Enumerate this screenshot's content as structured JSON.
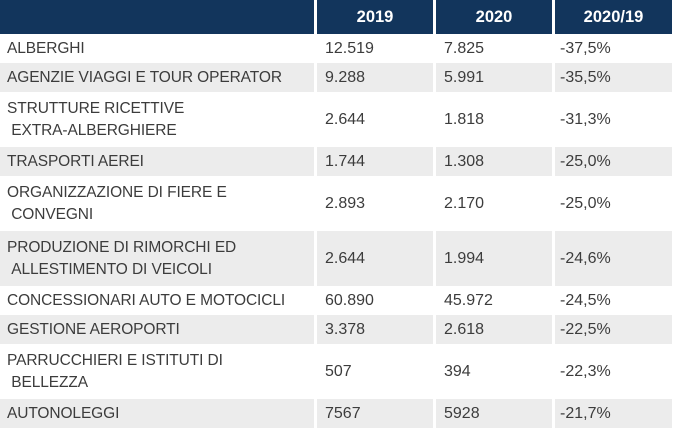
{
  "chart_data": {
    "type": "table",
    "columns": [
      "",
      "2019",
      "2020",
      "2020/19"
    ],
    "rows": [
      {
        "label": "ALBERGHI",
        "y2019": "12.519",
        "y2020": "7.825",
        "change": "-37,5%"
      },
      {
        "label": "AGENZIE VIAGGI E TOUR OPERATOR",
        "y2019": "9.288",
        "y2020": "5.991",
        "change": "-35,5%"
      },
      {
        "label": "STRUTTURE RICETTIVE\n EXTRA-ALBERGHIERE",
        "y2019": "2.644",
        "y2020": "1.818",
        "change": "-31,3%"
      },
      {
        "label": "TRASPORTI AEREI",
        "y2019": "1.744",
        "y2020": "1.308",
        "change": "-25,0%"
      },
      {
        "label": "ORGANIZZAZIONE DI FIERE E\n CONVEGNI",
        "y2019": "2.893",
        "y2020": "2.170",
        "change": "-25,0%"
      },
      {
        "label": "PRODUZIONE DI RIMORCHI ED\n ALLESTIMENTO DI VEICOLI",
        "y2019": "2.644",
        "y2020": "1.994",
        "change": "-24,6%"
      },
      {
        "label": "CONCESSIONARI AUTO E MOTOCICLI",
        "y2019": "60.890",
        "y2020": "45.972",
        "change": "-24,5%"
      },
      {
        "label": "GESTIONE AEROPORTI",
        "y2019": "3.378",
        "y2020": "2.618",
        "change": "-22,5%"
      },
      {
        "label": "PARRUCCHIERI E ISTITUTI DI\n BELLEZZA",
        "y2019": "507",
        "y2020": "394",
        "change": "-22,3%"
      },
      {
        "label": "AUTONOLEGGI",
        "y2019": "7567",
        "y2020": "5928",
        "change": "-21,7%"
      }
    ]
  },
  "colors": {
    "header_bg": "#12355C",
    "alt_row_bg": "#ECECEC",
    "header_text": "#FFFFFF",
    "body_text": "#3C3C3C"
  }
}
